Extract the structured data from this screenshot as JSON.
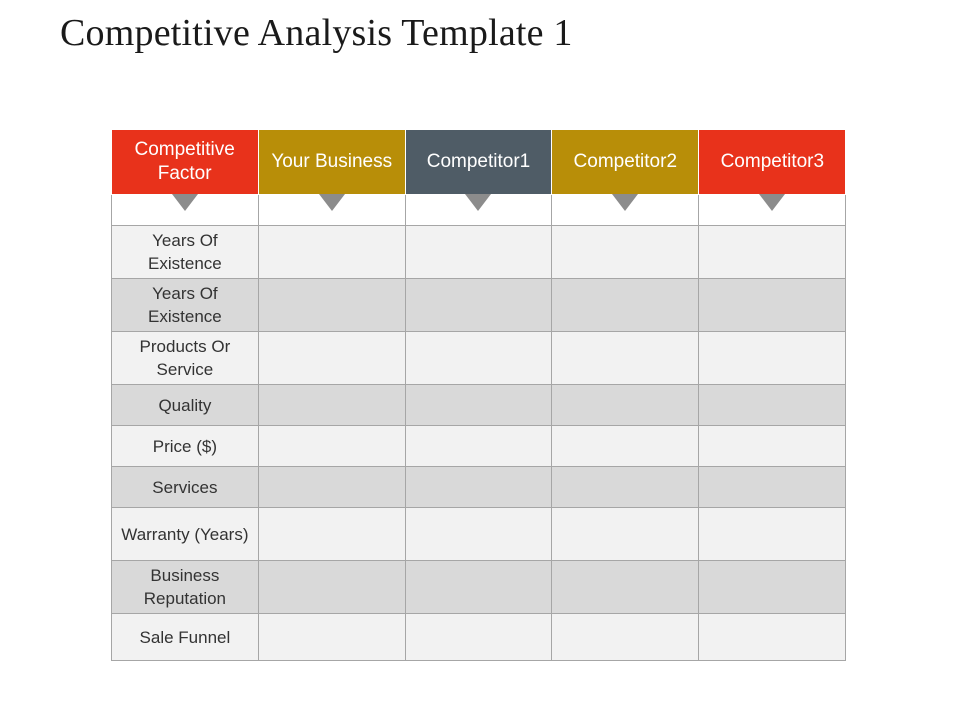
{
  "title": "Competitive Analysis Template 1",
  "table": {
    "headers": [
      {
        "label": "Competitive Factor",
        "color": "#e8321b"
      },
      {
        "label": "Your Business",
        "color": "#b88e08"
      },
      {
        "label": "Competitor1",
        "color": "#4f5c66"
      },
      {
        "label": "Competitor2",
        "color": "#b88e08"
      },
      {
        "label": "Competitor3",
        "color": "#e8321b"
      }
    ],
    "arrow_icon": "triangle-down-icon",
    "rows": [
      {
        "factor": "Years Of Existence",
        "cells": [
          "",
          "",
          "",
          ""
        ]
      },
      {
        "factor": "Years Of Existence",
        "cells": [
          "",
          "",
          "",
          ""
        ]
      },
      {
        "factor": "Products Or Service",
        "cells": [
          "",
          "",
          "",
          ""
        ]
      },
      {
        "factor": "Quality",
        "cells": [
          "",
          "",
          "",
          ""
        ]
      },
      {
        "factor": "Price ($)",
        "cells": [
          "",
          "",
          "",
          ""
        ]
      },
      {
        "factor": "Services",
        "cells": [
          "",
          "",
          "",
          ""
        ]
      },
      {
        "factor": "Warranty (Years)",
        "cells": [
          "",
          "",
          "",
          ""
        ]
      },
      {
        "factor": "Business Reputation",
        "cells": [
          "",
          "",
          "",
          ""
        ]
      },
      {
        "factor": "Sale Funnel",
        "cells": [
          "",
          "",
          "",
          ""
        ]
      }
    ]
  }
}
